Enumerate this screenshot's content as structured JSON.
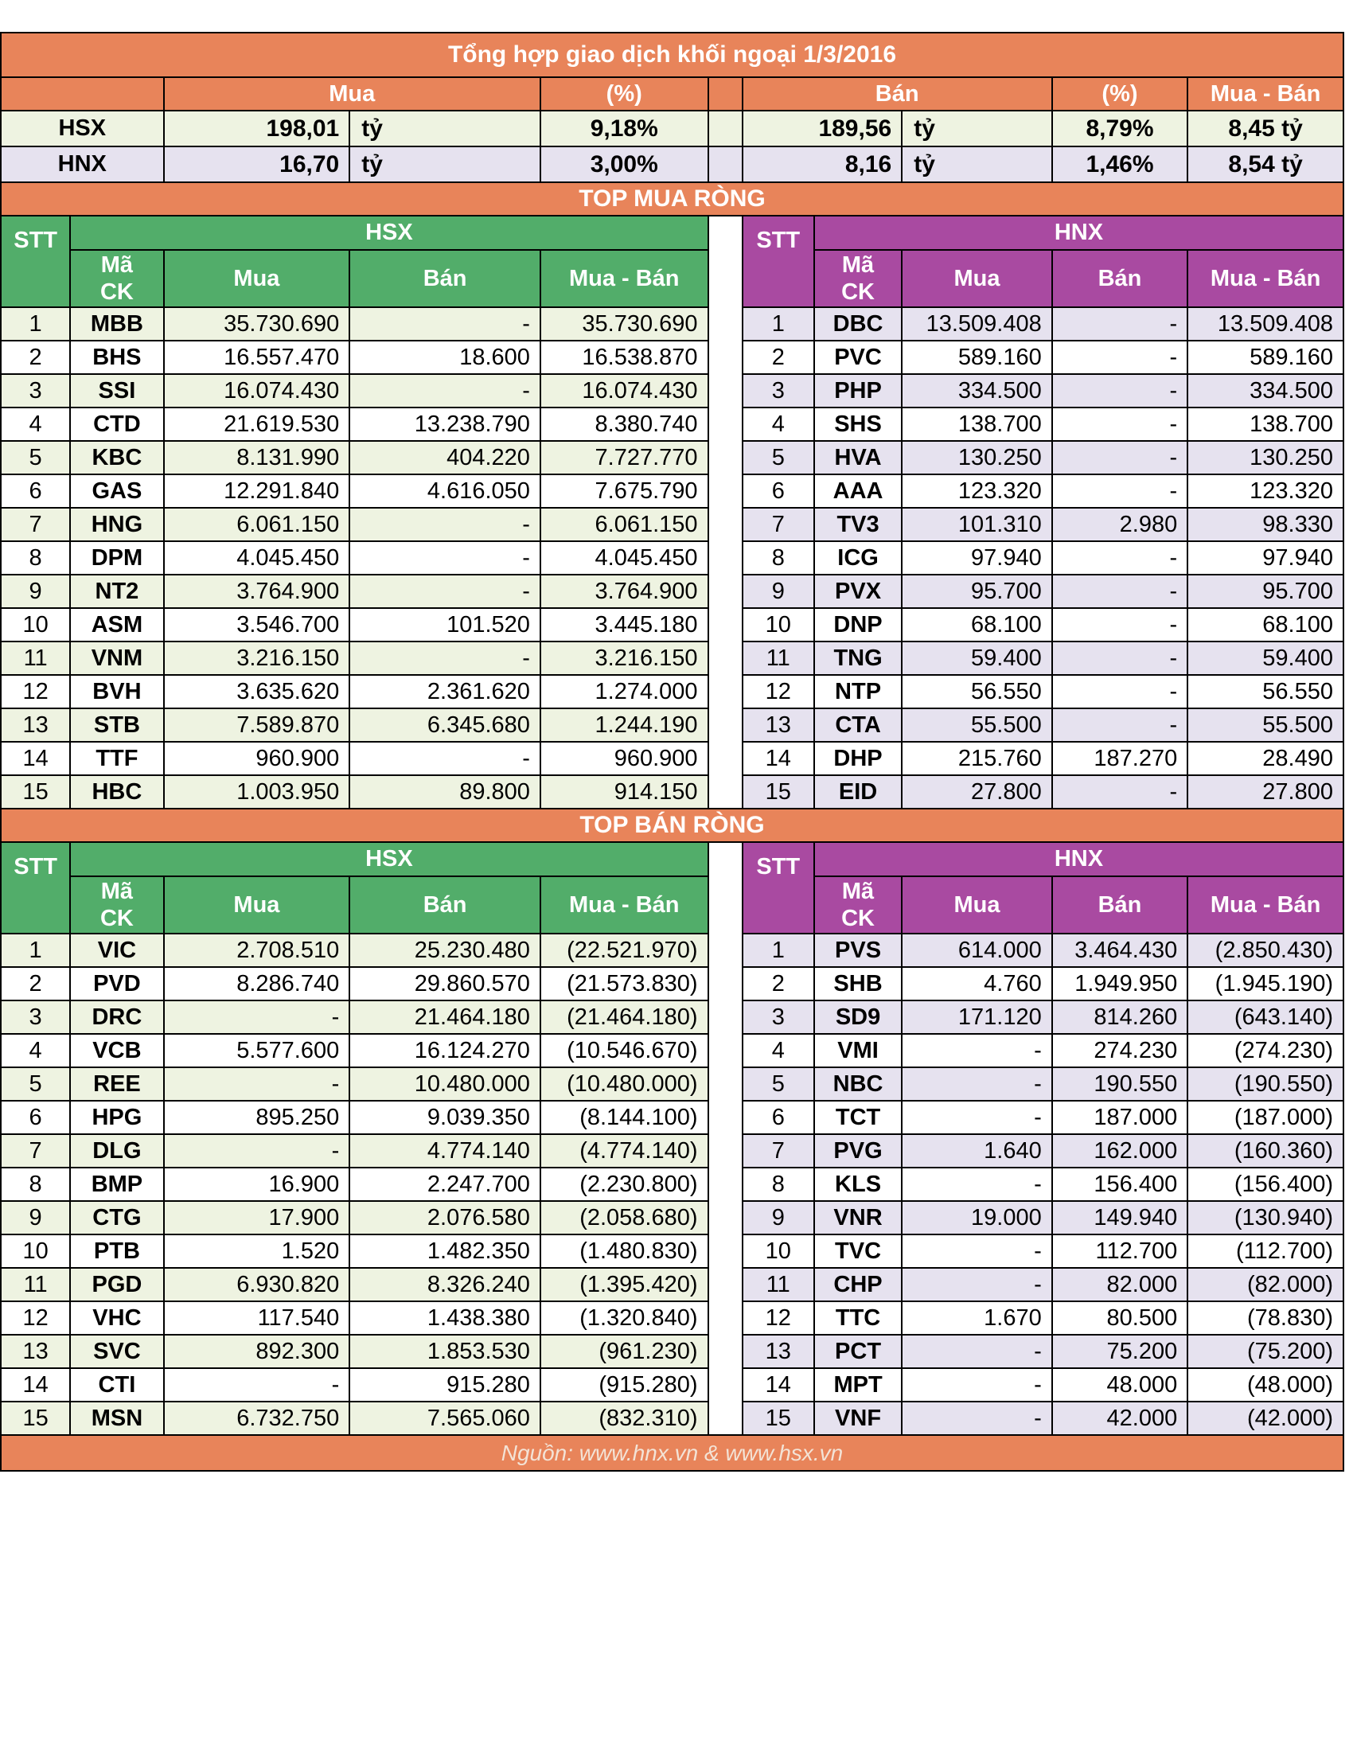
{
  "title": "Tổng hợp giao dịch khối ngoại 1/3/2016",
  "summary": {
    "headers": {
      "buy": "Mua",
      "buy_pct": "(%)",
      "sell": "Bán",
      "sell_pct": "(%)",
      "net": "Mua - Bán"
    },
    "rows": [
      {
        "exchange": "HSX",
        "buy": "198,01",
        "buy_unit": "tỷ",
        "buy_pct": "9,18%",
        "sell": "189,56",
        "sell_unit": "tỷ",
        "sell_pct": "8,79%",
        "net": "8,45 tỷ"
      },
      {
        "exchange": "HNX",
        "buy": "16,70",
        "buy_unit": "tỷ",
        "buy_pct": "3,00%",
        "sell": "8,16",
        "sell_unit": "tỷ",
        "sell_pct": "1,46%",
        "net": "8,54 tỷ"
      }
    ]
  },
  "labels": {
    "stt": "STT",
    "code_line1": "Mã",
    "code_line2": "CK",
    "buy": "Mua",
    "sell": "Bán",
    "net": "Mua - Bán",
    "hsx": "HSX",
    "hnx": "HNX"
  },
  "colors": {
    "header": "#e8845a",
    "hsx": "#52ad6a",
    "hnx": "#a94aa1",
    "hsx_row": "#eef3e1",
    "hnx_row": "#e6e2ef"
  },
  "top_buy": {
    "title": "TOP MUA RÒNG",
    "hsx": [
      [
        "1",
        "MBB",
        "35.730.690",
        "-",
        "35.730.690"
      ],
      [
        "2",
        "BHS",
        "16.557.470",
        "18.600",
        "16.538.870"
      ],
      [
        "3",
        "SSI",
        "16.074.430",
        "-",
        "16.074.430"
      ],
      [
        "4",
        "CTD",
        "21.619.530",
        "13.238.790",
        "8.380.740"
      ],
      [
        "5",
        "KBC",
        "8.131.990",
        "404.220",
        "7.727.770"
      ],
      [
        "6",
        "GAS",
        "12.291.840",
        "4.616.050",
        "7.675.790"
      ],
      [
        "7",
        "HNG",
        "6.061.150",
        "-",
        "6.061.150"
      ],
      [
        "8",
        "DPM",
        "4.045.450",
        "-",
        "4.045.450"
      ],
      [
        "9",
        "NT2",
        "3.764.900",
        "-",
        "3.764.900"
      ],
      [
        "10",
        "ASM",
        "3.546.700",
        "101.520",
        "3.445.180"
      ],
      [
        "11",
        "VNM",
        "3.216.150",
        "-",
        "3.216.150"
      ],
      [
        "12",
        "BVH",
        "3.635.620",
        "2.361.620",
        "1.274.000"
      ],
      [
        "13",
        "STB",
        "7.589.870",
        "6.345.680",
        "1.244.190"
      ],
      [
        "14",
        "TTF",
        "960.900",
        "-",
        "960.900"
      ],
      [
        "15",
        "HBC",
        "1.003.950",
        "89.800",
        "914.150"
      ]
    ],
    "hnx": [
      [
        "1",
        "DBC",
        "13.509.408",
        "-",
        "13.509.408"
      ],
      [
        "2",
        "PVC",
        "589.160",
        "-",
        "589.160"
      ],
      [
        "3",
        "PHP",
        "334.500",
        "-",
        "334.500"
      ],
      [
        "4",
        "SHS",
        "138.700",
        "-",
        "138.700"
      ],
      [
        "5",
        "HVA",
        "130.250",
        "-",
        "130.250"
      ],
      [
        "6",
        "AAA",
        "123.320",
        "-",
        "123.320"
      ],
      [
        "7",
        "TV3",
        "101.310",
        "2.980",
        "98.330"
      ],
      [
        "8",
        "ICG",
        "97.940",
        "-",
        "97.940"
      ],
      [
        "9",
        "PVX",
        "95.700",
        "-",
        "95.700"
      ],
      [
        "10",
        "DNP",
        "68.100",
        "-",
        "68.100"
      ],
      [
        "11",
        "TNG",
        "59.400",
        "-",
        "59.400"
      ],
      [
        "12",
        "NTP",
        "56.550",
        "-",
        "56.550"
      ],
      [
        "13",
        "CTA",
        "55.500",
        "-",
        "55.500"
      ],
      [
        "14",
        "DHP",
        "215.760",
        "187.270",
        "28.490"
      ],
      [
        "15",
        "EID",
        "27.800",
        "-",
        "27.800"
      ]
    ]
  },
  "top_sell": {
    "title": "TOP BÁN RÒNG",
    "hsx": [
      [
        "1",
        "VIC",
        "2.708.510",
        "25.230.480",
        "(22.521.970)"
      ],
      [
        "2",
        "PVD",
        "8.286.740",
        "29.860.570",
        "(21.573.830)"
      ],
      [
        "3",
        "DRC",
        "-",
        "21.464.180",
        "(21.464.180)"
      ],
      [
        "4",
        "VCB",
        "5.577.600",
        "16.124.270",
        "(10.546.670)"
      ],
      [
        "5",
        "REE",
        "-",
        "10.480.000",
        "(10.480.000)"
      ],
      [
        "6",
        "HPG",
        "895.250",
        "9.039.350",
        "(8.144.100)"
      ],
      [
        "7",
        "DLG",
        "-",
        "4.774.140",
        "(4.774.140)"
      ],
      [
        "8",
        "BMP",
        "16.900",
        "2.247.700",
        "(2.230.800)"
      ],
      [
        "9",
        "CTG",
        "17.900",
        "2.076.580",
        "(2.058.680)"
      ],
      [
        "10",
        "PTB",
        "1.520",
        "1.482.350",
        "(1.480.830)"
      ],
      [
        "11",
        "PGD",
        "6.930.820",
        "8.326.240",
        "(1.395.420)"
      ],
      [
        "12",
        "VHC",
        "117.540",
        "1.438.380",
        "(1.320.840)"
      ],
      [
        "13",
        "SVC",
        "892.300",
        "1.853.530",
        "(961.230)"
      ],
      [
        "14",
        "CTI",
        "-",
        "915.280",
        "(915.280)"
      ],
      [
        "15",
        "MSN",
        "6.732.750",
        "7.565.060",
        "(832.310)"
      ]
    ],
    "hnx": [
      [
        "1",
        "PVS",
        "614.000",
        "3.464.430",
        "(2.850.430)"
      ],
      [
        "2",
        "SHB",
        "4.760",
        "1.949.950",
        "(1.945.190)"
      ],
      [
        "3",
        "SD9",
        "171.120",
        "814.260",
        "(643.140)"
      ],
      [
        "4",
        "VMI",
        "-",
        "274.230",
        "(274.230)"
      ],
      [
        "5",
        "NBC",
        "-",
        "190.550",
        "(190.550)"
      ],
      [
        "6",
        "TCT",
        "-",
        "187.000",
        "(187.000)"
      ],
      [
        "7",
        "PVG",
        "1.640",
        "162.000",
        "(160.360)"
      ],
      [
        "8",
        "KLS",
        "-",
        "156.400",
        "(156.400)"
      ],
      [
        "9",
        "VNR",
        "19.000",
        "149.940",
        "(130.940)"
      ],
      [
        "10",
        "TVC",
        "-",
        "112.700",
        "(112.700)"
      ],
      [
        "11",
        "CHP",
        "-",
        "82.000",
        "(82.000)"
      ],
      [
        "12",
        "TTC",
        "1.670",
        "80.500",
        "(78.830)"
      ],
      [
        "13",
        "PCT",
        "-",
        "75.200",
        "(75.200)"
      ],
      [
        "14",
        "MPT",
        "-",
        "48.000",
        "(48.000)"
      ],
      [
        "15",
        "VNF",
        "-",
        "42.000",
        "(42.000)"
      ]
    ]
  },
  "footer": "Nguồn: www.hnx.vn   &   www.hsx.vn"
}
